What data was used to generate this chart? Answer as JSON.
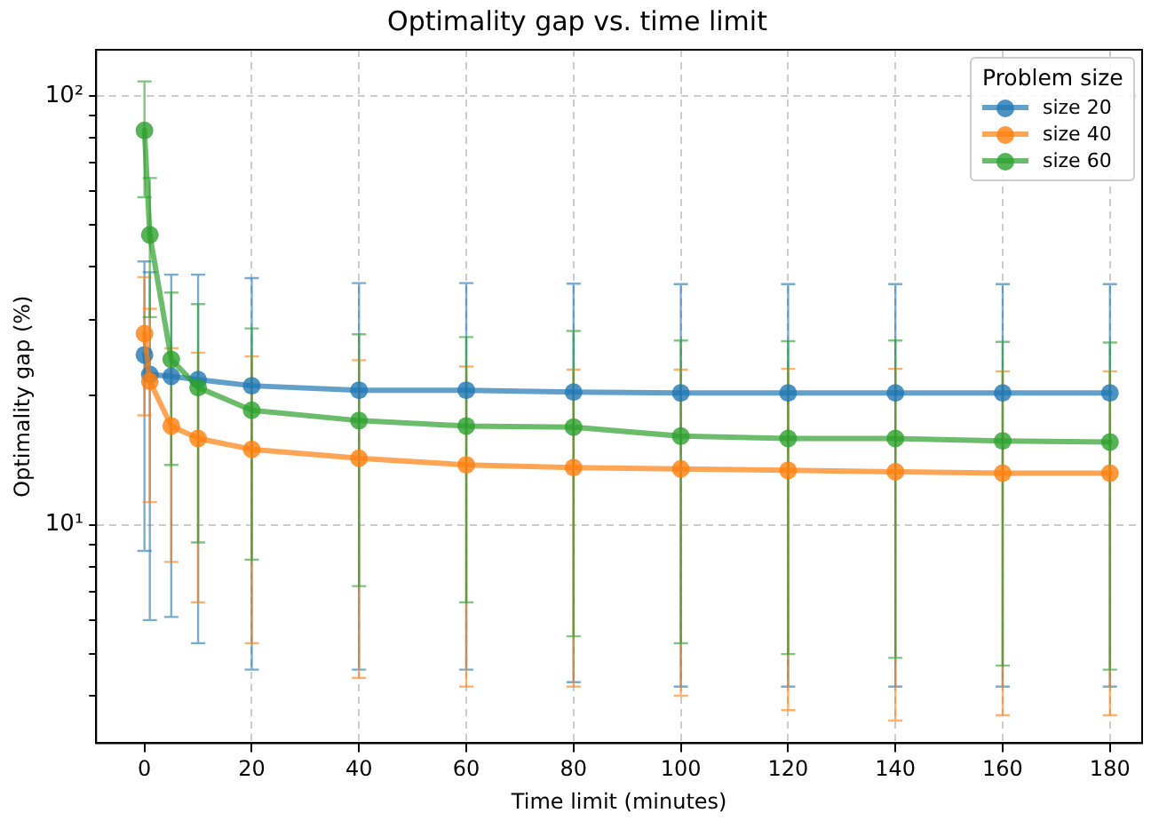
{
  "chart_data": {
    "type": "line",
    "title": "Optimality gap vs. time limit",
    "xlabel": "Time limit (minutes)",
    "ylabel": "Optimality gap (%)",
    "legend_title": "Problem size",
    "x": [
      0,
      1,
      5,
      10,
      20,
      40,
      60,
      80,
      100,
      120,
      140,
      160,
      180
    ],
    "series": [
      {
        "name": "size 20",
        "color": "#1f77b4",
        "values": [
          24.9,
          22.4,
          22.2,
          21.8,
          21.1,
          20.6,
          20.6,
          20.4,
          20.3,
          20.3,
          20.3,
          20.3,
          20.3
        ],
        "errors": [
          16.2,
          16.4,
          16.1,
          16.5,
          16.5,
          16.0,
          16.0,
          16.1,
          16.1,
          16.1,
          16.1,
          16.1,
          16.1
        ]
      },
      {
        "name": "size 40",
        "color": "#ff7f0e",
        "values": [
          27.9,
          21.6,
          17.0,
          15.9,
          15.0,
          14.3,
          13.8,
          13.6,
          13.5,
          13.4,
          13.3,
          13.2,
          13.2
        ],
        "errors": [
          9.9,
          10.3,
          8.8,
          9.3,
          9.7,
          9.9,
          9.6,
          9.4,
          9.5,
          9.7,
          9.8,
          9.6,
          9.6
        ]
      },
      {
        "name": "size 60",
        "color": "#2ca02c",
        "values": [
          83.0,
          47.4,
          24.3,
          20.9,
          18.5,
          17.5,
          17.0,
          16.9,
          16.1,
          15.9,
          15.9,
          15.7,
          15.6
        ],
        "errors": [
          25,
          16.9,
          10.5,
          11.8,
          10.2,
          10.3,
          10.4,
          11.4,
          10.8,
          10.9,
          11.0,
          11.0,
          11.0
        ]
      }
    ],
    "log": "y",
    "xlim": [
      -9,
      186
    ],
    "xticks": [
      0,
      20,
      40,
      60,
      80,
      100,
      120,
      140,
      160,
      180
    ],
    "ylim": [
      3.1,
      128
    ],
    "yticks": [
      {
        "value": 4,
        "label": null
      },
      {
        "value": 5,
        "label": null
      },
      {
        "value": 6,
        "label": null
      },
      {
        "value": 7,
        "label": null
      },
      {
        "value": 8,
        "label": null
      },
      {
        "value": 9,
        "label": null
      },
      {
        "value": 10,
        "label": "10¹"
      },
      {
        "value": 20,
        "label": null
      },
      {
        "value": 30,
        "label": null
      },
      {
        "value": 40,
        "label": null
      },
      {
        "value": 50,
        "label": null
      },
      {
        "value": 60,
        "label": null
      },
      {
        "value": 70,
        "label": null
      },
      {
        "value": 80,
        "label": null
      },
      {
        "value": 90,
        "label": null
      },
      {
        "value": 100,
        "label": "10²"
      }
    ],
    "grid": true,
    "legend": "top right",
    "marker": "circle",
    "line_style": "solid"
  }
}
